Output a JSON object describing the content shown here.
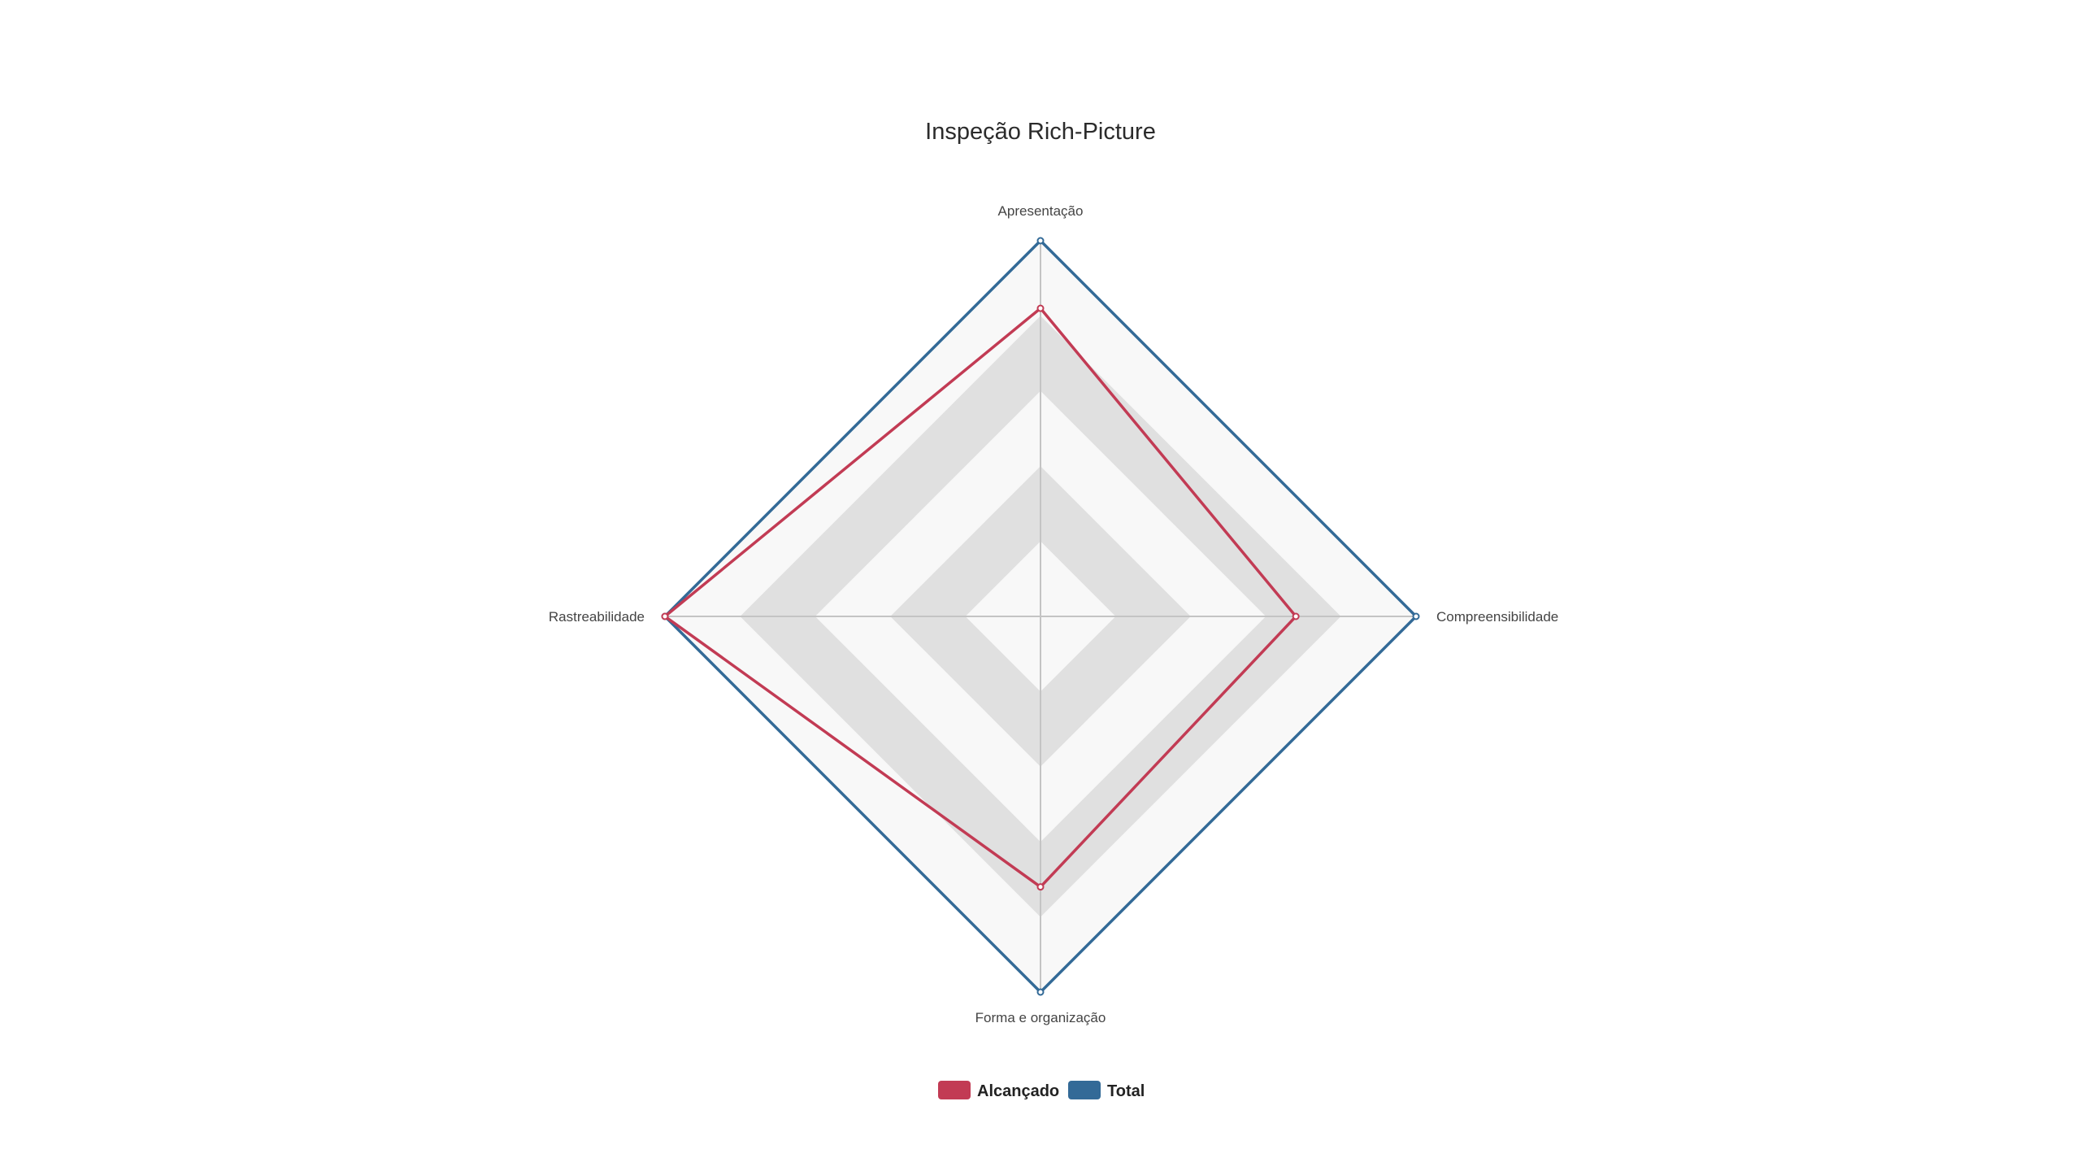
{
  "chart_data": {
    "type": "radar",
    "title": "Inspeção Rich-Picture",
    "categories": [
      "Apresentação",
      "Compreensibilidade",
      "Forma e organização",
      "Rastreabilidade"
    ],
    "rlim": [
      0,
      5
    ],
    "grid": true,
    "legend_position": "bottom",
    "series": [
      {
        "name": "Alcançado",
        "values": [
          4.1,
          3.4,
          3.6,
          5.0
        ],
        "color": "#c23b54"
      },
      {
        "name": "Total",
        "values": [
          5.0,
          5.0,
          5.0,
          5.0
        ],
        "color": "#336a97"
      }
    ]
  }
}
